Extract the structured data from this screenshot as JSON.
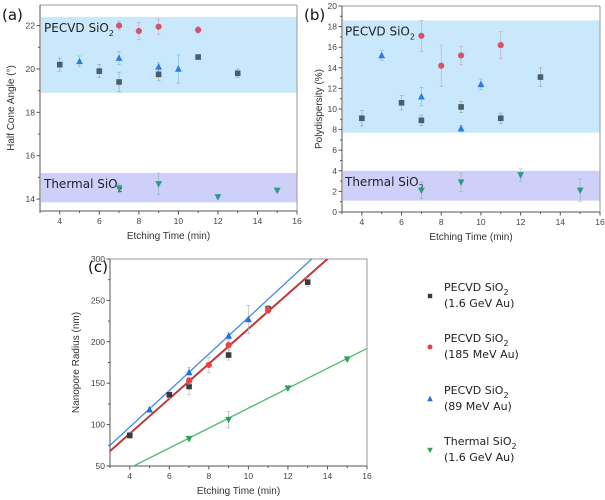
{
  "chart_data": [
    {
      "id": "a",
      "type": "scatter",
      "panel_label": "(a)",
      "xlabel": "Etching Time (min)",
      "ylabel": "Half Cone Angle (°)",
      "xlim": [
        3,
        16
      ],
      "ylim": [
        13.45,
        22.95
      ],
      "xticks": [
        4,
        6,
        8,
        10,
        12,
        14,
        16
      ],
      "yticks": [
        14,
        16,
        18,
        20,
        22
      ],
      "bands": [
        {
          "name": "PECVD SiO2",
          "label": "PECVD SiO",
          "sub": "2",
          "range": [
            18.9,
            22.4
          ],
          "color": "#c9e8fb"
        },
        {
          "name": "Thermal SiO2",
          "label": "Thermal SiO",
          "sub": "2",
          "range": [
            13.85,
            15.2
          ],
          "color": "#cfd0fa"
        }
      ],
      "series": [
        {
          "name": "PECVD SiO2 (1.6 GeV Au)",
          "marker": "square",
          "color": "#4a5e6a",
          "x": [
            4,
            6,
            7,
            9,
            11,
            13
          ],
          "y": [
            20.2,
            19.9,
            19.4,
            19.75,
            20.55,
            19.8
          ],
          "err": [
            0.3,
            0.3,
            0.45,
            0.3,
            0.1,
            0.2
          ]
        },
        {
          "name": "PECVD SiO2 (185 MeV Au)",
          "marker": "circle",
          "color": "#d4546a",
          "x": [
            7,
            8,
            9,
            11
          ],
          "y": [
            22.0,
            21.75,
            21.95,
            21.8
          ],
          "err": [
            0.2,
            0.4,
            0.35,
            0.15
          ]
        },
        {
          "name": "PECVD SiO2 (89 MeV Au)",
          "marker": "triangle-up",
          "color": "#2b7de0",
          "x": [
            5,
            7,
            9,
            10
          ],
          "y": [
            20.35,
            20.5,
            20.1,
            20.0
          ],
          "err": [
            0.25,
            0.3,
            0.2,
            0.65
          ]
        },
        {
          "name": "Thermal SiO2 (1.6 GeV Au)",
          "marker": "triangle-down",
          "color": "#2e9a86",
          "x": [
            7,
            9,
            12,
            15
          ],
          "y": [
            14.5,
            14.7,
            14.1,
            14.4
          ],
          "err": [
            0.2,
            0.5,
            0.05,
            0.05
          ]
        }
      ]
    },
    {
      "id": "b",
      "type": "scatter",
      "panel_label": "(b)",
      "xlabel": "Etching Time (min)",
      "ylabel": "Polydispersity (%)",
      "xlim": [
        3,
        16
      ],
      "ylim": [
        0,
        20
      ],
      "xticks": [
        4,
        6,
        8,
        10,
        12,
        14,
        16
      ],
      "yticks": [
        0,
        2,
        4,
        6,
        8,
        10,
        12,
        14,
        16,
        18,
        20
      ],
      "bands": [
        {
          "name": "PECVD SiO2",
          "label": "PECVD SiO",
          "sub": "2",
          "range": [
            7.7,
            18.6
          ],
          "color": "#c9e8fb"
        },
        {
          "name": "Thermal SiO2",
          "label": "Thermal SiO",
          "sub": "2",
          "range": [
            1.1,
            4.0
          ],
          "color": "#cfd0fa"
        }
      ],
      "series": [
        {
          "name": "PECVD SiO2 (1.6 GeV Au)",
          "marker": "square",
          "color": "#4a5e6a",
          "x": [
            4,
            6,
            7,
            9,
            11,
            13
          ],
          "y": [
            9.1,
            10.6,
            8.9,
            10.2,
            9.1,
            13.1
          ],
          "err": [
            0.75,
            0.7,
            0.5,
            0.55,
            0.5,
            0.9
          ]
        },
        {
          "name": "PECVD SiO2 (185 MeV Au)",
          "marker": "circle",
          "color": "#d4546a",
          "x": [
            7,
            8,
            9,
            11
          ],
          "y": [
            17.1,
            14.2,
            15.2,
            16.2
          ],
          "err": [
            1.5,
            2.0,
            0.9,
            1.3
          ]
        },
        {
          "name": "PECVD SiO2 (89 MeV Au)",
          "marker": "triangle-up",
          "color": "#2b7de0",
          "x": [
            5,
            7,
            9,
            10
          ],
          "y": [
            15.2,
            11.2,
            8.1,
            12.4
          ],
          "err": [
            0.5,
            0.9,
            0.3,
            0.5
          ]
        },
        {
          "name": "Thermal SiO2 (1.6 GeV Au)",
          "marker": "triangle-down",
          "color": "#2e9a86",
          "x": [
            7,
            9,
            12,
            15
          ],
          "y": [
            2.1,
            2.9,
            3.6,
            2.1
          ],
          "err": [
            0.8,
            0.9,
            0.6,
            1.1
          ]
        }
      ]
    },
    {
      "id": "c",
      "type": "scatter",
      "panel_label": "(c)",
      "xlabel": "Etching Time (min)",
      "ylabel": "Nanopore Radius (nm)",
      "xlim": [
        3,
        16
      ],
      "ylim": [
        50,
        300
      ],
      "xticks": [
        4,
        6,
        8,
        10,
        12,
        14,
        16
      ],
      "yticks": [
        50,
        100,
        150,
        200,
        250,
        300
      ],
      "legend_position": "right",
      "series": [
        {
          "name": "PECVD SiO2 (1.6 GeV Au)",
          "legend_line1": "PECVD SiO",
          "legend_sub": "2",
          "legend_line2": "(1.6 GeV Au)",
          "marker": "square",
          "color": "#3a3a3a",
          "x": [
            4,
            6,
            7,
            9,
            11,
            13
          ],
          "y": [
            87,
            136,
            146,
            184,
            240,
            272
          ],
          "err": [
            4,
            4,
            10,
            6,
            4,
            5
          ],
          "fit": null
        },
        {
          "name": "PECVD SiO2 (185 MeV Au)",
          "legend_line1": "PECVD SiO",
          "legend_sub": "2",
          "legend_line2": "(185 MeV Au)",
          "marker": "circle",
          "color": "#e8414a",
          "x": [
            7,
            8,
            9,
            11
          ],
          "y": [
            153,
            172,
            196,
            238
          ],
          "err": [
            4,
            9,
            5,
            4
          ],
          "fit": {
            "x": [
              3,
              14
            ],
            "y": [
              68,
              300
            ],
            "color": "#c0393b"
          }
        },
        {
          "name": "PECVD SiO2 (89 MeV Au)",
          "legend_line1": "PECVD SiO",
          "legend_sub": "2",
          "legend_line2": "(89 MeV Au)",
          "marker": "triangle-up",
          "color": "#1f6fe0",
          "x": [
            5,
            7,
            9,
            10
          ],
          "y": [
            118,
            163,
            207,
            227
          ],
          "err": [
            3,
            6,
            4,
            17
          ],
          "fit": {
            "x": [
              3,
              13.2
            ],
            "y": [
              75,
              300
            ],
            "color": "#3d8ae6"
          }
        },
        {
          "name": "Thermal SiO2 (1.6 GeV Au)",
          "legend_line1": "Thermal SiO",
          "legend_sub": "2",
          "legend_line2": "(1.6 GeV Au)",
          "marker": "triangle-down",
          "color": "#2aa35a",
          "x": [
            7,
            9,
            12,
            15
          ],
          "y": [
            83,
            106,
            144,
            179
          ],
          "err": [
            2,
            10,
            2,
            2
          ],
          "fit": {
            "x": [
              4.2,
              16
            ],
            "y": [
              50,
              192
            ],
            "color": "#4cbb6f"
          }
        }
      ]
    }
  ]
}
